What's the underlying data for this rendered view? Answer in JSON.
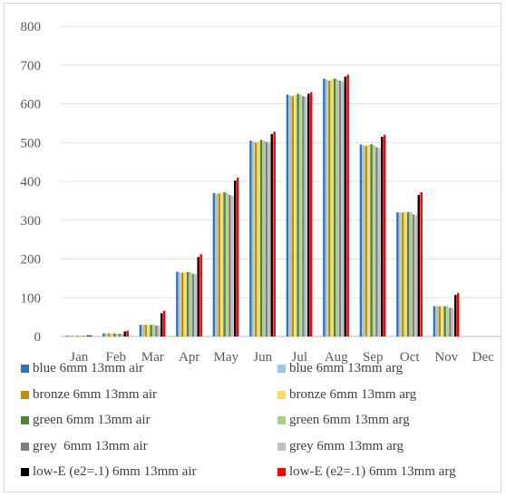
{
  "chart_data": {
    "type": "bar",
    "categories": [
      "Jan",
      "Feb",
      "Mar",
      "Apr",
      "May",
      "Jun",
      "Jul",
      "Aug",
      "Sep",
      "Oct",
      "Nov",
      "Dec"
    ],
    "ylim": [
      0,
      800
    ],
    "yticks": [
      0,
      100,
      200,
      300,
      400,
      500,
      600,
      700,
      800
    ],
    "grid": true,
    "legend_position": "bottom",
    "series": [
      {
        "name": "blue 6mm 13mm air",
        "color": "#2e75b6",
        "values": [
          2,
          8,
          30,
          167,
          370,
          505,
          624,
          665,
          495,
          320,
          78,
          0
        ]
      },
      {
        "name": "blue 6mm 13mm arg",
        "color": "#9dc3e6",
        "values": [
          2,
          8,
          30,
          165,
          368,
          503,
          622,
          663,
          493,
          320,
          78,
          0
        ]
      },
      {
        "name": "bronze 6mm 13mm air",
        "color": "#bf9000",
        "values": [
          2,
          8,
          30,
          165,
          369,
          500,
          620,
          660,
          492,
          320,
          78,
          0
        ]
      },
      {
        "name": "bronze 6mm 13mm arg",
        "color": "#ffd966",
        "values": [
          2,
          8,
          30,
          166,
          370,
          503,
          622,
          664,
          494,
          320,
          78,
          0
        ]
      },
      {
        "name": "green 6mm 13mm air",
        "color": "#538135",
        "values": [
          2,
          8,
          30,
          166,
          372,
          507,
          626,
          665,
          496,
          321,
          78,
          0
        ]
      },
      {
        "name": "green 6mm 13mm arg",
        "color": "#a9d18e",
        "values": [
          2,
          8,
          30,
          166,
          370,
          505,
          624,
          663,
          494,
          321,
          78,
          0
        ]
      },
      {
        "name": "grey  6mm 13mm air",
        "color": "#7f7f7f",
        "values": [
          2,
          7,
          28,
          162,
          365,
          502,
          620,
          660,
          488,
          315,
          74,
          0
        ]
      },
      {
        "name": "grey 6mm 13mm arg",
        "color": "#bfbfbf",
        "values": [
          2,
          7,
          28,
          160,
          363,
          500,
          618,
          658,
          486,
          313,
          73,
          0
        ]
      },
      {
        "name": "low-E (e2=.1) 6mm 13mm air",
        "color": "#000000",
        "values": [
          3,
          13,
          60,
          205,
          402,
          522,
          626,
          670,
          515,
          365,
          107,
          0
        ]
      },
      {
        "name": "low-E (e2=.1) 6mm 13mm arg",
        "color": "#ff0000",
        "values": [
          3,
          15,
          66,
          212,
          410,
          528,
          630,
          675,
          520,
          372,
          112,
          0
        ]
      }
    ]
  }
}
